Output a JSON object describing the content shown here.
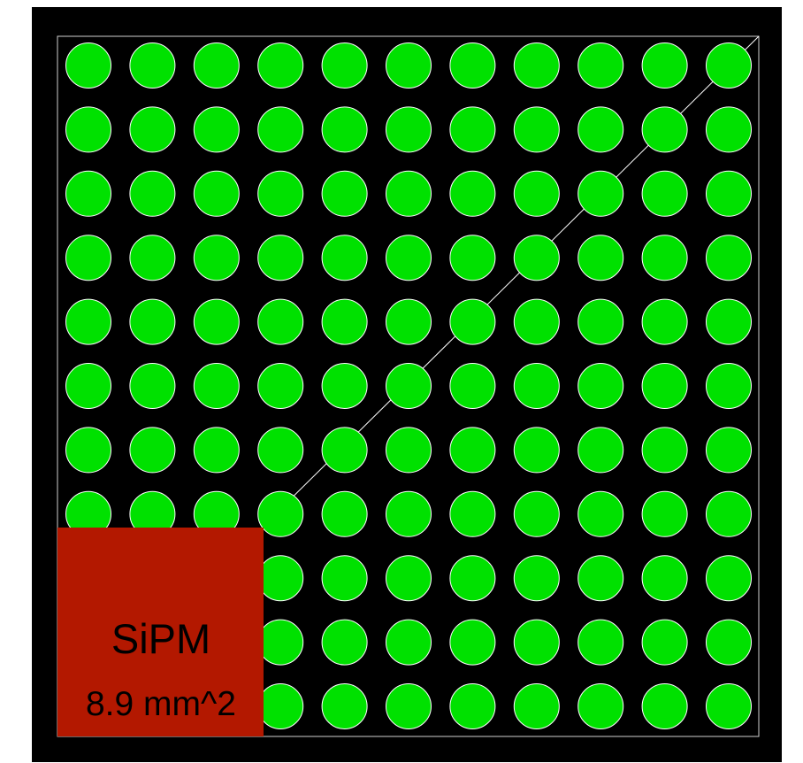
{
  "diagram": {
    "grid_rows": 11,
    "grid_cols": 11,
    "colors": {
      "background": "#000000",
      "fiber_fill": "#00e100",
      "fiber_outline": "#ffffff",
      "frame_line": "#ffffff",
      "sipm_fill": "#b31800",
      "label_text": "#000000"
    },
    "sipm": {
      "title": "SiPM",
      "area_label": "8.9 mm^2"
    }
  }
}
